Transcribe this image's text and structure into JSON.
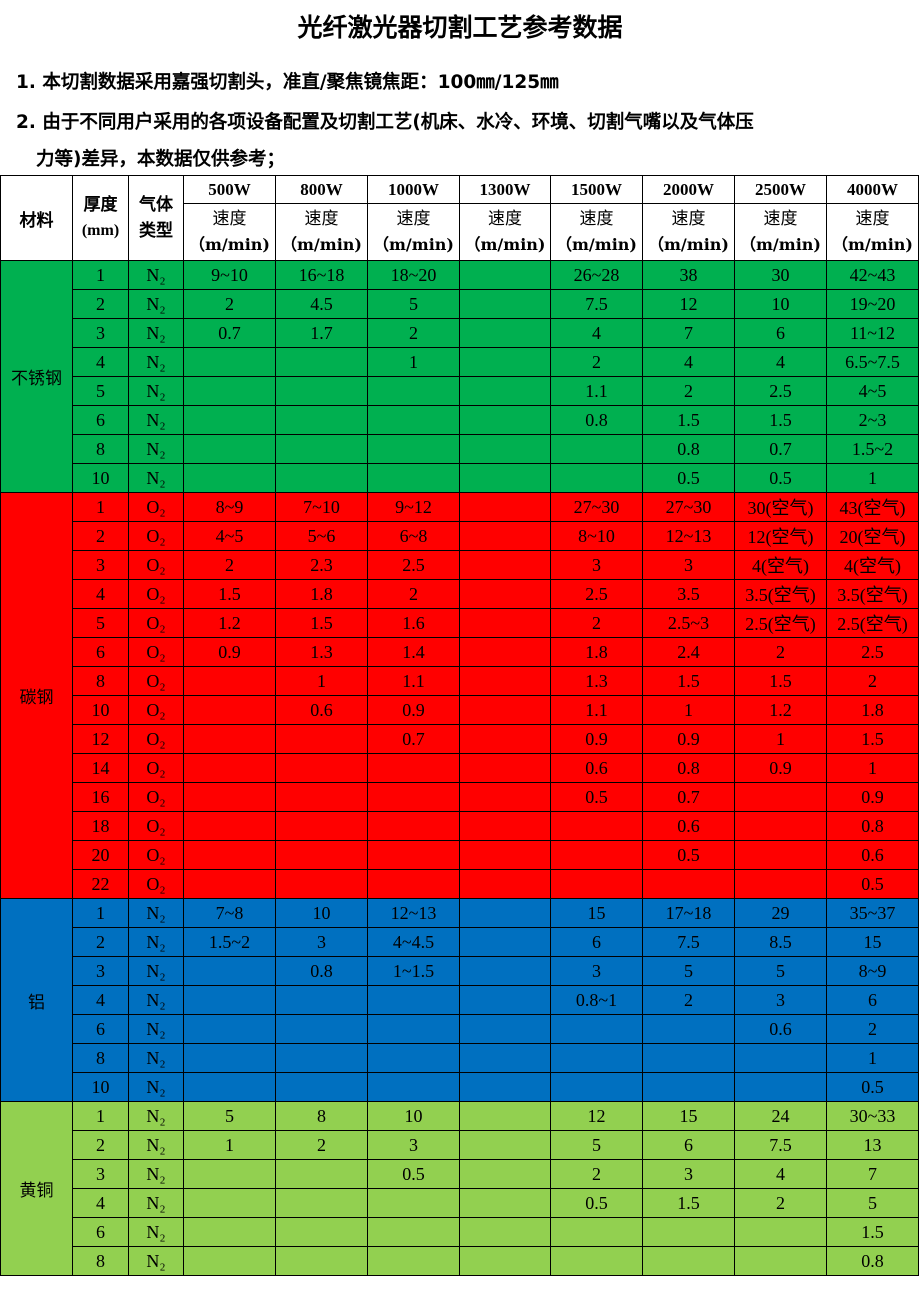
{
  "title": "光纤激光器切割工艺参考数据",
  "notes": [
    "1. 本切割数据采用嘉强切割头，准直/聚焦镜焦距：100㎜/125㎜",
    "2. 由于不同用户采用的各项设备配置及切割工艺(机床、水冷、环境、切割气嘴以及气体压",
    "力等)差异，本数据仅供参考；"
  ],
  "headers": {
    "material": "材料",
    "thickness": "厚度",
    "thickness_unit": "(mm)",
    "gas_1": "气体",
    "gas_2": "类型",
    "speed": "速度",
    "speed_unit": "（m/min)",
    "powers": [
      "500W",
      "800W",
      "1000W",
      "1300W",
      "1500W",
      "2000W",
      "2500W",
      "4000W"
    ]
  },
  "colors": {
    "stainless": "#00b050",
    "carbon": "#ff0000",
    "aluminum": "#0070c0",
    "brass": "#92d050"
  },
  "groups": [
    {
      "material": "不锈钢",
      "color": "#00b050",
      "rows": [
        {
          "t": "1",
          "gas": "N₂",
          "v": [
            "9~10",
            "16~18",
            "18~20",
            "",
            "26~28",
            "38",
            "30",
            "42~43"
          ]
        },
        {
          "t": "2",
          "gas": "N₂",
          "v": [
            "2",
            "4.5",
            "5",
            "",
            "7.5",
            "12",
            "10",
            "19~20"
          ]
        },
        {
          "t": "3",
          "gas": "N₂",
          "v": [
            "0.7",
            "1.7",
            "2",
            "",
            "4",
            "7",
            "6",
            "11~12"
          ]
        },
        {
          "t": "4",
          "gas": "N₂",
          "v": [
            "",
            "",
            "1",
            "",
            "2",
            "4",
            "4",
            "6.5~7.5"
          ]
        },
        {
          "t": "5",
          "gas": "N₂",
          "v": [
            "",
            "",
            "",
            "",
            "1.1",
            "2",
            "2.5",
            "4~5"
          ]
        },
        {
          "t": "6",
          "gas": "N₂",
          "v": [
            "",
            "",
            "",
            "",
            "0.8",
            "1.5",
            "1.5",
            "2~3"
          ]
        },
        {
          "t": "8",
          "gas": "N₂",
          "v": [
            "",
            "",
            "",
            "",
            "",
            "0.8",
            "0.7",
            "1.5~2"
          ]
        },
        {
          "t": "10",
          "gas": "N₂",
          "v": [
            "",
            "",
            "",
            "",
            "",
            "0.5",
            "0.5",
            "1"
          ]
        }
      ]
    },
    {
      "material": "碳钢",
      "color": "#ff0000",
      "rows": [
        {
          "t": "1",
          "gas": "O₂",
          "v": [
            "8~9",
            "7~10",
            "9~12",
            "",
            "27~30",
            "27~30",
            "30(空气)",
            "43(空气)"
          ]
        },
        {
          "t": "2",
          "gas": "O₂",
          "v": [
            "4~5",
            "5~6",
            "6~8",
            "",
            "8~10",
            "12~13",
            "12(空气)",
            "20(空气)"
          ]
        },
        {
          "t": "3",
          "gas": "O₂",
          "v": [
            "2",
            "2.3",
            "2.5",
            "",
            "3",
            "3",
            "4(空气)",
            "4(空气)"
          ]
        },
        {
          "t": "4",
          "gas": "O₂",
          "v": [
            "1.5",
            "1.8",
            "2",
            "",
            "2.5",
            "3.5",
            "3.5(空气)",
            "3.5(空气)"
          ]
        },
        {
          "t": "5",
          "gas": "O₂",
          "v": [
            "1.2",
            "1.5",
            "1.6",
            "",
            "2",
            "2.5~3",
            "2.5(空气)",
            "2.5(空气)"
          ]
        },
        {
          "t": "6",
          "gas": "O₂",
          "v": [
            "0.9",
            "1.3",
            "1.4",
            "",
            "1.8",
            "2.4",
            "2",
            "2.5"
          ]
        },
        {
          "t": "8",
          "gas": "O₂",
          "v": [
            "",
            "1",
            "1.1",
            "",
            "1.3",
            "1.5",
            "1.5",
            "2"
          ]
        },
        {
          "t": "10",
          "gas": "O₂",
          "v": [
            "",
            "0.6",
            "0.9",
            "",
            "1.1",
            "1",
            "1.2",
            "1.8"
          ]
        },
        {
          "t": "12",
          "gas": "O₂",
          "v": [
            "",
            "",
            "0.7",
            "",
            "0.9",
            "0.9",
            "1",
            "1.5"
          ]
        },
        {
          "t": "14",
          "gas": "O₂",
          "v": [
            "",
            "",
            "",
            "",
            "0.6",
            "0.8",
            "0.9",
            "1"
          ]
        },
        {
          "t": "16",
          "gas": "O₂",
          "v": [
            "",
            "",
            "",
            "",
            "0.5",
            "0.7",
            "",
            "0.9"
          ]
        },
        {
          "t": "18",
          "gas": "O₂",
          "v": [
            "",
            "",
            "",
            "",
            "",
            "0.6",
            "",
            "0.8"
          ]
        },
        {
          "t": "20",
          "gas": "O₂",
          "v": [
            "",
            "",
            "",
            "",
            "",
            "0.5",
            "",
            "0.6"
          ]
        },
        {
          "t": "22",
          "gas": "O₂",
          "v": [
            "",
            "",
            "",
            "",
            "",
            "",
            "",
            "0.5"
          ]
        }
      ]
    },
    {
      "material": "铝",
      "color": "#0070c0",
      "rows": [
        {
          "t": "1",
          "gas": "N₂",
          "v": [
            "7~8",
            "10",
            "12~13",
            "",
            "15",
            "17~18",
            "29",
            "35~37"
          ]
        },
        {
          "t": "2",
          "gas": "N₂",
          "v": [
            "1.5~2",
            "3",
            "4~4.5",
            "",
            "6",
            "7.5",
            "8.5",
            "15"
          ]
        },
        {
          "t": "3",
          "gas": "N₂",
          "v": [
            "",
            "0.8",
            "1~1.5",
            "",
            "3",
            "5",
            "5",
            "8~9"
          ]
        },
        {
          "t": "4",
          "gas": "N₂",
          "v": [
            "",
            "",
            "",
            "",
            "0.8~1",
            "2",
            "3",
            "6"
          ]
        },
        {
          "t": "6",
          "gas": "N₂",
          "v": [
            "",
            "",
            "",
            "",
            "",
            "",
            "0.6",
            "2"
          ]
        },
        {
          "t": "8",
          "gas": "N₂",
          "v": [
            "",
            "",
            "",
            "",
            "",
            "",
            "",
            "1"
          ]
        },
        {
          "t": "10",
          "gas": "N₂",
          "v": [
            "",
            "",
            "",
            "",
            "",
            "",
            "",
            "0.5"
          ]
        }
      ]
    },
    {
      "material": "黄铜",
      "color": "#92d050",
      "rows": [
        {
          "t": "1",
          "gas": "N₂",
          "v": [
            "5",
            "8",
            "10",
            "",
            "12",
            "15",
            "24",
            "30~33"
          ]
        },
        {
          "t": "2",
          "gas": "N₂",
          "v": [
            "1",
            "2",
            "3",
            "",
            "5",
            "6",
            "7.5",
            "13"
          ]
        },
        {
          "t": "3",
          "gas": "N₂",
          "v": [
            "",
            "",
            "0.5",
            "",
            "2",
            "3",
            "4",
            "7"
          ]
        },
        {
          "t": "4",
          "gas": "N₂",
          "v": [
            "",
            "",
            "",
            "",
            "0.5",
            "1.5",
            "2",
            "5"
          ]
        },
        {
          "t": "6",
          "gas": "N₂",
          "v": [
            "",
            "",
            "",
            "",
            "",
            "",
            "",
            "1.5"
          ]
        },
        {
          "t": "8",
          "gas": "N₂",
          "v": [
            "",
            "",
            "",
            "",
            "",
            "",
            "",
            "0.8"
          ]
        }
      ]
    }
  ]
}
